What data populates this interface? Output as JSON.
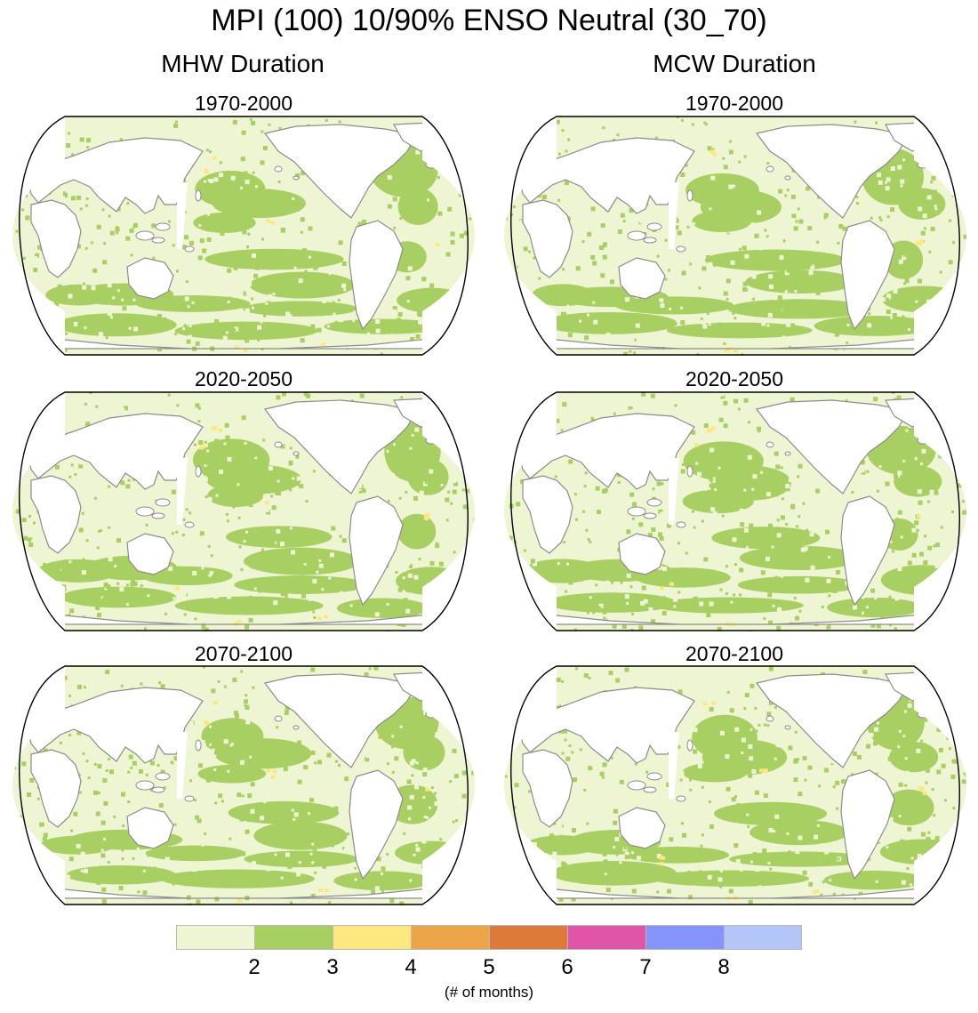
{
  "title": "MPI (100) 10/90% ENSO Neutral (30_70)",
  "columns": [
    "MHW Duration",
    "MCW Duration"
  ],
  "periods": [
    "1970-2000",
    "2020-2050",
    "2070-2100"
  ],
  "colorbar": {
    "colors": [
      "#eef5d2",
      "#a8cf62",
      "#fde880",
      "#eca448",
      "#dc7a3a",
      "#e055a8",
      "#8494fa",
      "#b4c6f8"
    ],
    "tick_labels": [
      "2",
      "3",
      "4",
      "5",
      "6",
      "7",
      "8"
    ],
    "unit_label": "(# of months)"
  },
  "land_color": "#ffffff",
  "coast_color": "#8c8c8c"
}
